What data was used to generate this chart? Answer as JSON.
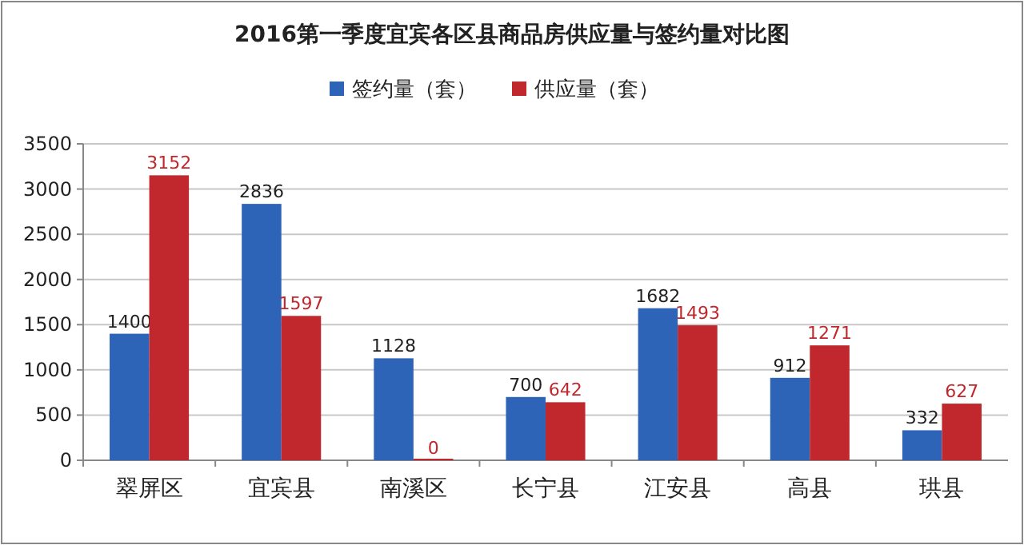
{
  "chart_data": {
    "type": "bar",
    "title": "2016第一季度宜宾各区县商品房供应量与签约量对比图",
    "categories": [
      "翠屏区",
      "宜宾县",
      "南溪区",
      "长宁县",
      "江安县",
      "高县",
      "珙县"
    ],
    "series": [
      {
        "name": "签约量（套）",
        "color": "#2e64b8",
        "values": [
          1400,
          2836,
          1128,
          700,
          1682,
          912,
          332
        ]
      },
      {
        "name": "供应量（套）",
        "color": "#c0282d",
        "values": [
          3152,
          1597,
          0,
          642,
          1493,
          1271,
          627
        ]
      }
    ],
    "ylim": [
      0,
      3500
    ],
    "yticks": [
      0,
      500,
      1000,
      1500,
      2000,
      2500,
      3000,
      3500
    ],
    "grid": "y",
    "legend": "top",
    "data_labels": true
  }
}
